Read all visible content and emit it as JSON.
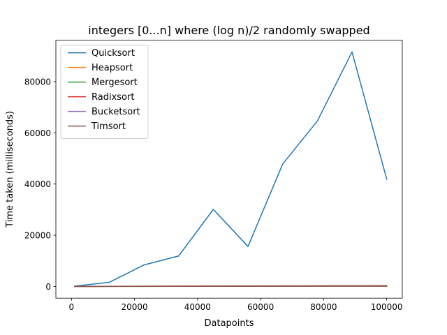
{
  "chart_data": {
    "type": "line",
    "title": "integers [0...n] where (log n)/2 randomly swapped",
    "xlabel": "Datapoints",
    "ylabel": "Time taken (milliseconds)",
    "xlim": [
      -4950,
      104950
    ],
    "ylim": [
      -4580,
      96180
    ],
    "x_ticks": [
      0,
      20000,
      40000,
      60000,
      80000,
      100000
    ],
    "x_tick_labels": [
      "0",
      "20000",
      "40000",
      "60000",
      "80000",
      "100000"
    ],
    "y_ticks": [
      0,
      20000,
      40000,
      60000,
      80000
    ],
    "y_tick_labels": [
      "0",
      "20000",
      "40000",
      "60000",
      "80000"
    ],
    "grid": false,
    "legend_position": "top-left",
    "x": [
      1000,
      12000,
      23000,
      34000,
      45000,
      56000,
      67000,
      78000,
      89000,
      100000
    ],
    "series": [
      {
        "name": "Quicksort",
        "color": "#1f77b4",
        "values": [
          100,
          1600,
          8400,
          11900,
          30100,
          15600,
          47800,
          64600,
          91600,
          41900
        ]
      },
      {
        "name": "Heapsort",
        "color": "#ff7f0e",
        "values": [
          5,
          40,
          80,
          120,
          160,
          200,
          240,
          280,
          320,
          360
        ]
      },
      {
        "name": "Mergesort",
        "color": "#2ca02c",
        "values": [
          5,
          30,
          60,
          90,
          120,
          150,
          180,
          210,
          240,
          270
        ]
      },
      {
        "name": "Radixsort",
        "color": "#d62728",
        "values": [
          5,
          25,
          50,
          75,
          100,
          125,
          150,
          175,
          200,
          225
        ]
      },
      {
        "name": "Bucketsort",
        "color": "#9467bd",
        "values": [
          5,
          20,
          40,
          60,
          80,
          100,
          120,
          140,
          160,
          180
        ]
      },
      {
        "name": "Timsort",
        "color": "#8c564b",
        "values": [
          2,
          10,
          20,
          30,
          40,
          50,
          60,
          70,
          80,
          90
        ]
      }
    ]
  }
}
